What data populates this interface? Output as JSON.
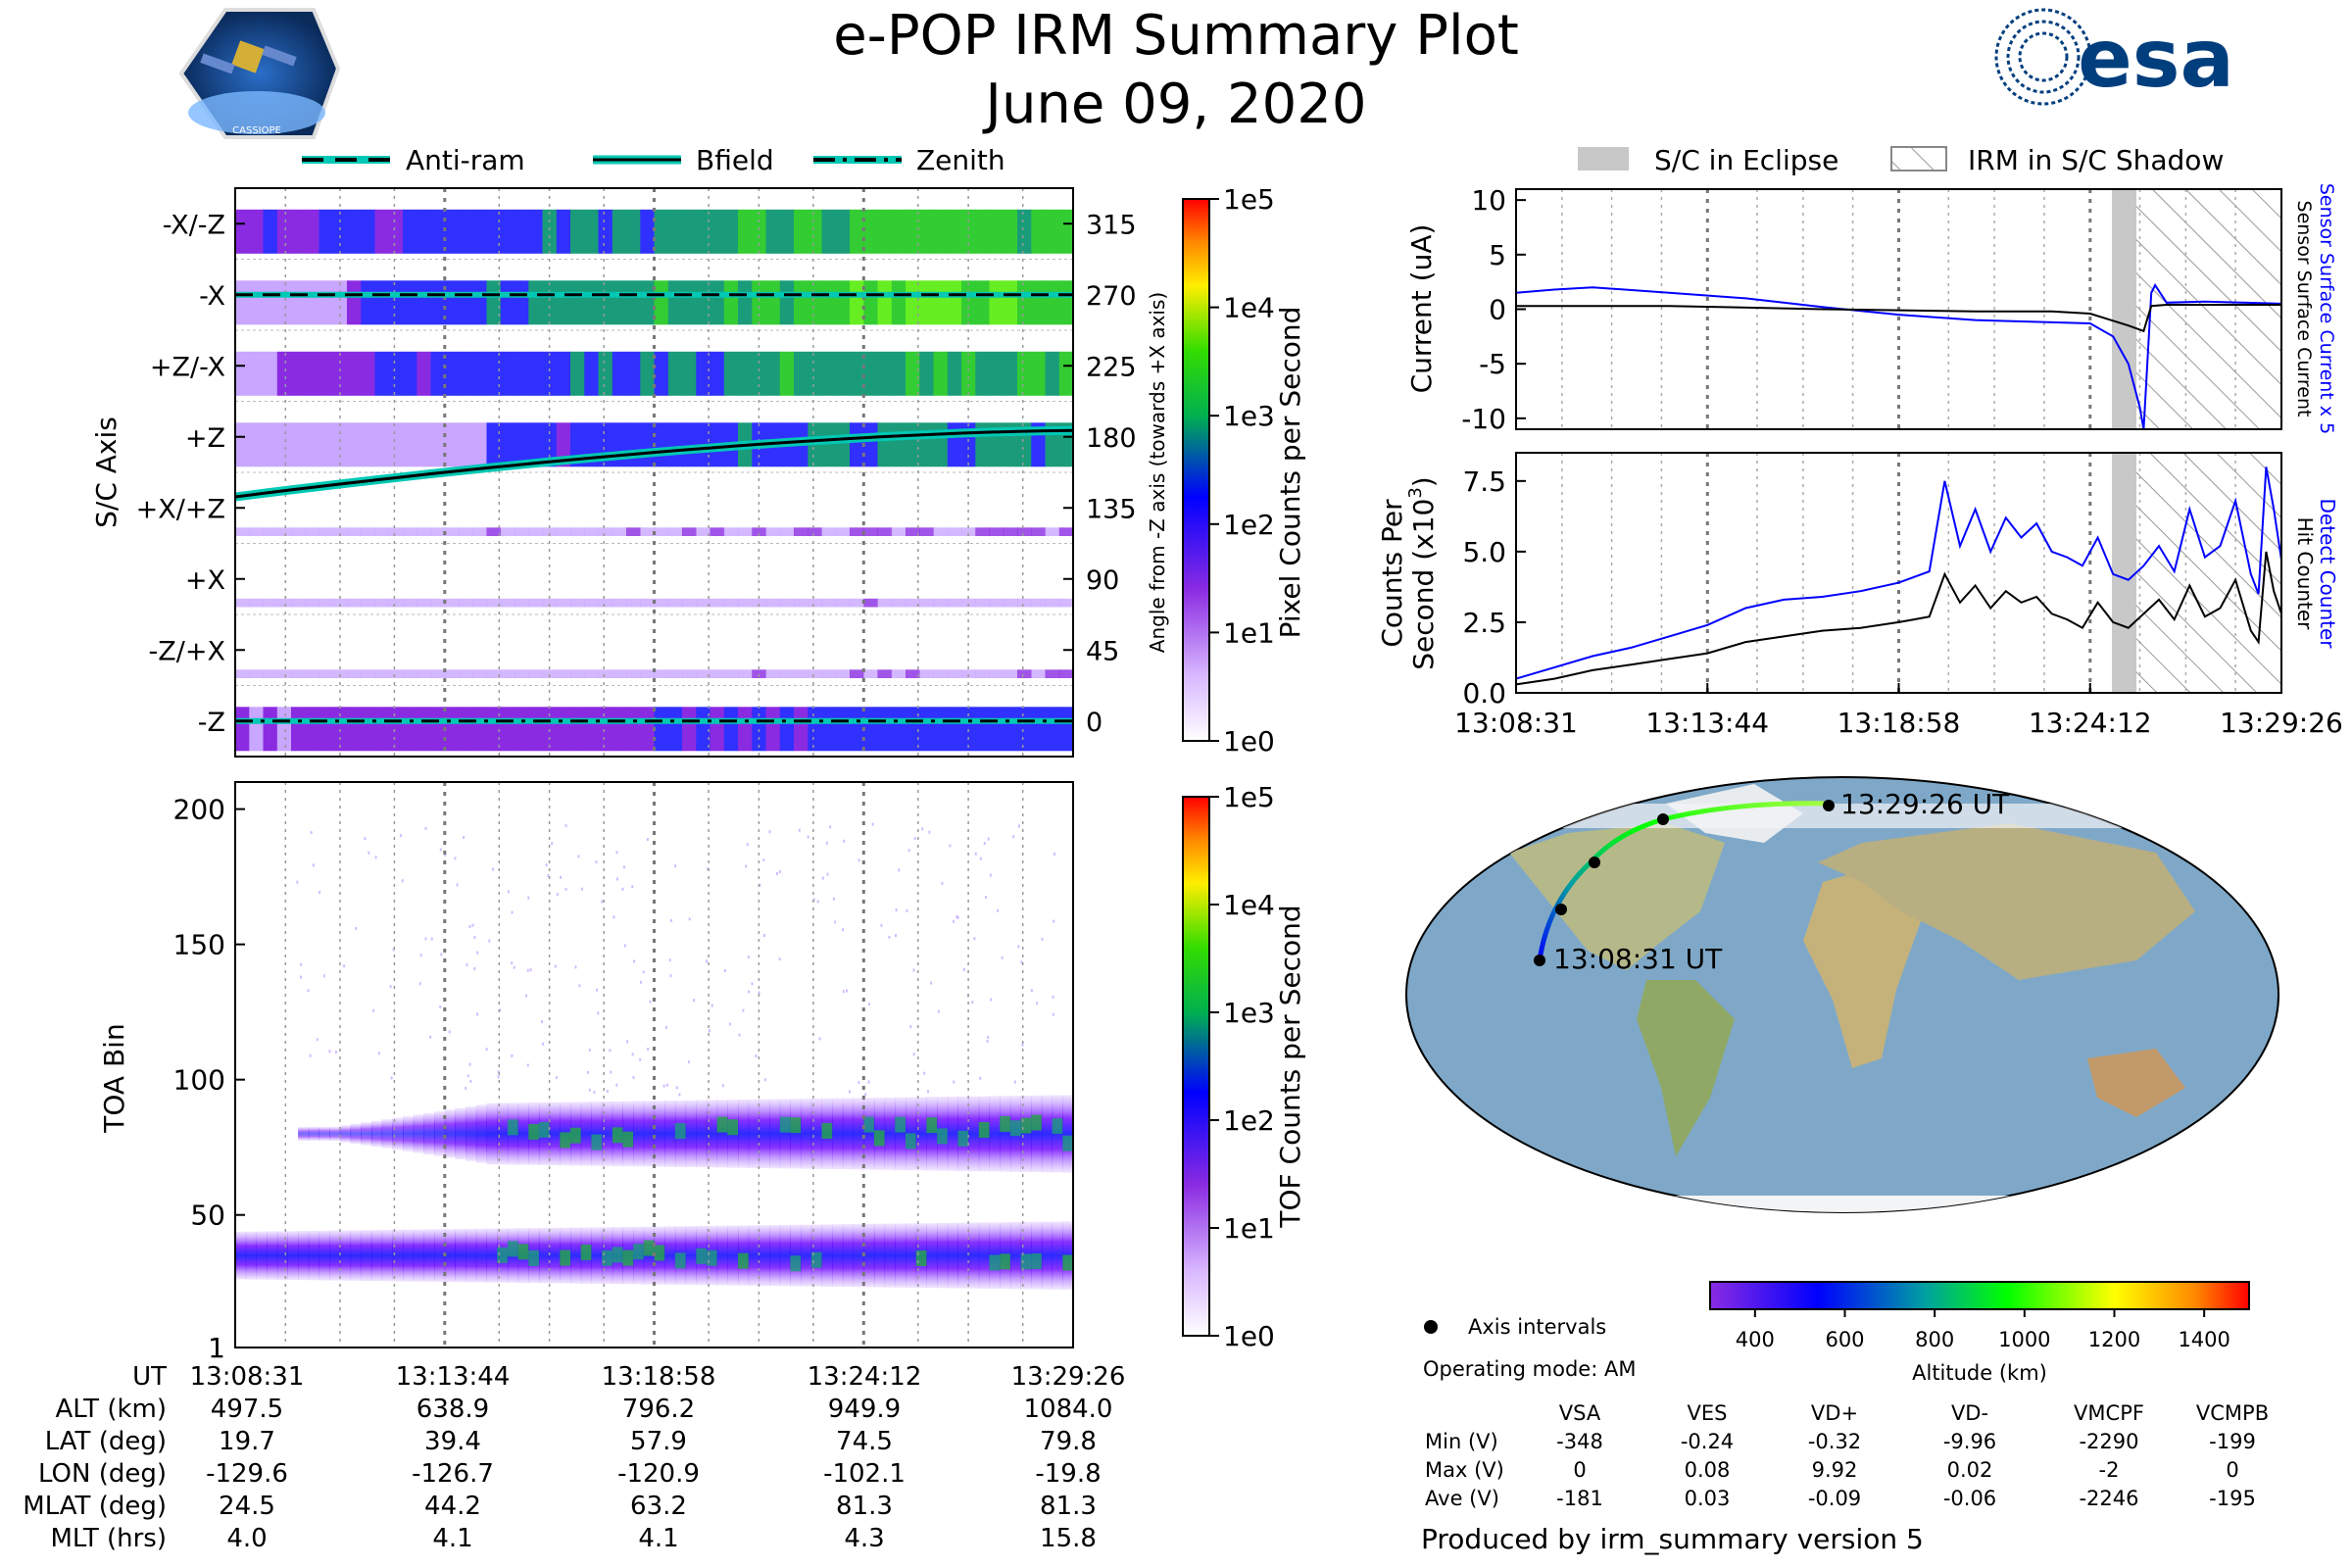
{
  "title": "e-POP IRM Summary Plot",
  "date": "June 09, 2020",
  "logos": {
    "left": "CASSIOPE",
    "right": "esa"
  },
  "legend_top_left": [
    {
      "name": "Anti-ram",
      "style": "dashed"
    },
    {
      "name": "Bfield",
      "style": "solid"
    },
    {
      "name": "Zenith",
      "style": "dashdot"
    }
  ],
  "legend_top_right": [
    {
      "name": "S/C in Eclipse",
      "style": "gray"
    },
    {
      "name": "IRM in S/C Shadow",
      "style": "hatched"
    }
  ],
  "colors": {
    "accent": "#00c8b4",
    "blue_series": "#0000ff",
    "black_series": "#000000",
    "map_ocean": "#7fa8c8"
  },
  "chart_data": [
    {
      "id": "sc-axis-panel",
      "type": "heatmap",
      "ylabel": "S/C Axis",
      "y_tick_labels": [
        "-X/-Z",
        "-X",
        "+Z/-X",
        "+Z",
        "+X/+Z",
        "+X",
        "-Z/+X",
        "-Z"
      ],
      "right_axis_label": "Angle from -Z axis (towards +X axis)",
      "right_ticks": [
        315,
        270,
        225,
        180,
        135,
        90,
        45,
        0
      ],
      "colorbar": {
        "label": "Pixel Counts per Second",
        "ticks": [
          "1e5",
          "1e4",
          "1e3",
          "1e2",
          "1e1",
          "1e0"
        ]
      },
      "bfield_angle": {
        "start": 142,
        "end": 184
      },
      "antiram_angle": 270,
      "zenith_angle": 0
    },
    {
      "id": "toa-panel",
      "type": "heatmap",
      "ylabel": "TOA Bin",
      "y_ticks": [
        "200",
        "150",
        "100",
        "50",
        "1"
      ],
      "ylim": [
        1,
        210
      ],
      "colorbar": {
        "label": "TOF Counts per Second",
        "ticks": [
          "1e5",
          "1e4",
          "1e3",
          "1e2",
          "1e1",
          "1e0"
        ]
      },
      "bands": [
        {
          "center": 80,
          "width": 25,
          "start_time_frac": 0.12
        },
        {
          "center": 35,
          "width": 22,
          "start_time_frac": 0.0
        }
      ]
    },
    {
      "id": "current-panel",
      "type": "line",
      "ylabel": "Current (uA)",
      "y_ticks": [
        10,
        5,
        0,
        -5,
        -10
      ],
      "ylim": [
        -11,
        11
      ],
      "series": [
        {
          "name": "Sensor Surface Current x 5",
          "color": "#0000ff",
          "x": [
            0,
            0.05,
            0.1,
            0.2,
            0.3,
            0.4,
            0.5,
            0.6,
            0.7,
            0.75,
            0.78,
            0.8,
            0.815,
            0.82,
            0.83,
            0.835,
            0.85,
            0.9,
            0.95,
            1.0
          ],
          "values": [
            1.5,
            1.8,
            2.0,
            1.5,
            1.0,
            0.2,
            -0.5,
            -1.0,
            -1.2,
            -1.3,
            -2.5,
            -5,
            -9,
            -11,
            1.5,
            2.2,
            0.6,
            0.7,
            0.6,
            0.5
          ]
        },
        {
          "name": "Sensor Surface Current",
          "color": "#000000",
          "x": [
            0,
            0.2,
            0.4,
            0.6,
            0.7,
            0.75,
            0.8,
            0.82,
            0.83,
            0.85,
            0.9,
            1.0
          ],
          "values": [
            0.3,
            0.3,
            0.0,
            -0.2,
            -0.2,
            -0.4,
            -1.5,
            -2.0,
            0.3,
            0.4,
            0.4,
            0.4
          ]
        }
      ],
      "right_labels": [
        "Sensor Surface Current x 5",
        "Sensor Surface Current"
      ]
    },
    {
      "id": "counts-panel",
      "type": "line",
      "ylabel": "Counts Per Second (x10³)",
      "ylabel_lines": [
        "Counts Per",
        "Second (x10"
      ],
      "ylabel_sup": "3",
      "ylabel_close": ")",
      "y_ticks": [
        "7.5",
        "5.0",
        "2.5",
        "0.0"
      ],
      "ylim": [
        0,
        8.5
      ],
      "x_tick_labels": [
        "13:08:31",
        "13:13:44",
        "13:18:58",
        "13:24:12",
        "13:29:26"
      ],
      "series": [
        {
          "name": "Detect Counter",
          "color": "#0000ff",
          "x": [
            0,
            0.05,
            0.1,
            0.15,
            0.2,
            0.25,
            0.3,
            0.35,
            0.4,
            0.45,
            0.5,
            0.52,
            0.54,
            0.56,
            0.58,
            0.6,
            0.62,
            0.64,
            0.66,
            0.68,
            0.7,
            0.72,
            0.74,
            0.76,
            0.78,
            0.8,
            0.82,
            0.84,
            0.86,
            0.88,
            0.9,
            0.92,
            0.94,
            0.96,
            0.97,
            0.98,
            0.99,
            1.0
          ],
          "values": [
            0.5,
            0.9,
            1.3,
            1.6,
            2.0,
            2.4,
            3.0,
            3.3,
            3.4,
            3.6,
            3.9,
            4.1,
            4.3,
            7.5,
            5.2,
            6.5,
            5.0,
            6.2,
            5.5,
            6.0,
            5.0,
            4.8,
            4.5,
            5.5,
            4.2,
            4.0,
            4.5,
            5.2,
            4.3,
            6.5,
            4.8,
            5.2,
            6.8,
            4.2,
            3.5,
            8.0,
            6.5,
            4.7
          ]
        },
        {
          "name": "Hit Counter",
          "color": "#000000",
          "x": [
            0,
            0.05,
            0.1,
            0.15,
            0.2,
            0.25,
            0.3,
            0.35,
            0.4,
            0.45,
            0.5,
            0.52,
            0.54,
            0.56,
            0.58,
            0.6,
            0.62,
            0.64,
            0.66,
            0.68,
            0.7,
            0.72,
            0.74,
            0.76,
            0.78,
            0.8,
            0.82,
            0.84,
            0.86,
            0.88,
            0.9,
            0.92,
            0.94,
            0.96,
            0.97,
            0.98,
            0.99,
            1.0
          ],
          "values": [
            0.3,
            0.5,
            0.8,
            1.0,
            1.2,
            1.4,
            1.8,
            2.0,
            2.2,
            2.3,
            2.5,
            2.6,
            2.7,
            4.2,
            3.2,
            3.8,
            3.0,
            3.6,
            3.2,
            3.4,
            2.8,
            2.6,
            2.3,
            3.2,
            2.5,
            2.3,
            2.8,
            3.3,
            2.6,
            3.8,
            2.7,
            3.0,
            4.0,
            2.2,
            1.8,
            5.0,
            3.6,
            2.8
          ]
        }
      ],
      "right_labels": [
        "Detect Counter",
        "Hit Counter"
      ]
    },
    {
      "id": "map-panel",
      "type": "scatter",
      "start_label": "13:08:31 UT",
      "end_label": "13:29:26 UT",
      "track_lonlat": [
        [
          -129.6,
          19.7
        ],
        [
          -126.7,
          39.4
        ],
        [
          -120.9,
          57.9
        ],
        [
          -102.1,
          74.5
        ],
        [
          -19.8,
          79.8
        ]
      ],
      "altitude_colorbar": {
        "label": "Altitude (km)",
        "ticks": [
          "400",
          "600",
          "800",
          "1000",
          "1200",
          "1400"
        ],
        "range": [
          300,
          1500
        ]
      },
      "axis_intervals_label": "Axis intervals",
      "operating_mode": "Operating mode: AM"
    }
  ],
  "time_table": {
    "ut_label": "UT",
    "ut": [
      "13:08:31",
      "13:13:44",
      "13:18:58",
      "13:24:12",
      "13:29:26"
    ],
    "rows": [
      {
        "label": "ALT (km)",
        "values": [
          "497.5",
          "638.9",
          "796.2",
          "949.9",
          "1084.0"
        ]
      },
      {
        "label": "LAT (deg)",
        "values": [
          "19.7",
          "39.4",
          "57.9",
          "74.5",
          "79.8"
        ]
      },
      {
        "label": "LON (deg)",
        "values": [
          "-129.6",
          "-126.7",
          "-120.9",
          "-102.1",
          "-19.8"
        ]
      },
      {
        "label": "MLAT (deg)",
        "values": [
          "24.5",
          "44.2",
          "63.2",
          "81.3",
          "81.3"
        ]
      },
      {
        "label": "MLT (hrs)",
        "values": [
          "4.0",
          "4.1",
          "4.1",
          "4.3",
          "15.8"
        ]
      }
    ]
  },
  "voltage_table": {
    "headers": [
      "VSA",
      "VES",
      "VD+",
      "VD-",
      "VMCPF",
      "VCMPB"
    ],
    "rows": [
      {
        "label": "Min (V)",
        "values": [
          "-348",
          "-0.24",
          "-0.32",
          "-9.96",
          "-2290",
          "-199"
        ]
      },
      {
        "label": "Max (V)",
        "values": [
          "0",
          "0.08",
          "9.92",
          "0.02",
          "-2",
          "0"
        ]
      },
      {
        "label": "Ave (V)",
        "values": [
          "-181",
          "0.03",
          "-0.09",
          "-0.06",
          "-2246",
          "-195"
        ]
      }
    ]
  },
  "footer": "Produced by irm_summary version 5"
}
